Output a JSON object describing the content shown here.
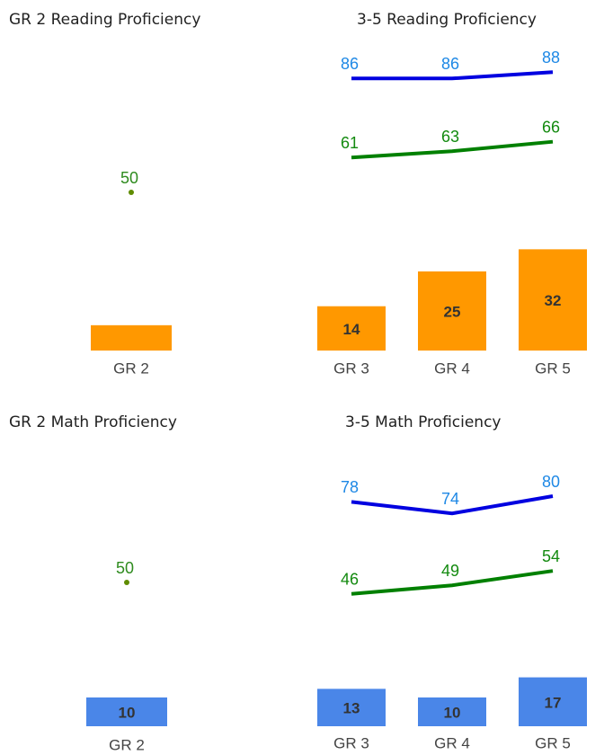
{
  "chart_data": [
    {
      "type": "combo",
      "title": "GR 2 Reading Proficiency",
      "categories": [
        "GR 2"
      ],
      "ylim": [
        0,
        100
      ],
      "bar_labels": false,
      "bars": {
        "color": "#ff9800",
        "values": [
          8
        ]
      },
      "series": [
        {
          "color": "#5f8c00",
          "label_color": "#2e8b1e",
          "values": [
            50
          ]
        }
      ]
    },
    {
      "type": "combo",
      "title": "3-5 Reading Proficiency",
      "categories": [
        "GR 3",
        "GR 4",
        "GR 5"
      ],
      "ylim": [
        0,
        100
      ],
      "bar_labels": true,
      "bars": {
        "color": "#ff9800",
        "values": [
          14,
          25,
          32
        ]
      },
      "series": [
        {
          "color": "#0000e0",
          "label_color": "#1e88e5",
          "values": [
            86,
            86,
            88
          ]
        },
        {
          "color": "#008000",
          "label_color": "#138a0f",
          "values": [
            61,
            63,
            66
          ]
        }
      ]
    },
    {
      "type": "combo",
      "title": "GR 2 Math Proficiency",
      "categories": [
        "GR 2"
      ],
      "ylim": [
        0,
        100
      ],
      "bar_labels": true,
      "bars": {
        "color": "#4a86e8",
        "values": [
          10
        ]
      },
      "series": [
        {
          "color": "#5f8c00",
          "label_color": "#2e8b1e",
          "values": [
            50
          ]
        }
      ]
    },
    {
      "type": "combo",
      "title": "3-5 Math Proficiency",
      "categories": [
        "GR 3",
        "GR 4",
        "GR 5"
      ],
      "ylim": [
        0,
        100
      ],
      "bar_labels": true,
      "bars": {
        "color": "#4a86e8",
        "values": [
          13,
          10,
          17
        ]
      },
      "series": [
        {
          "color": "#0000e0",
          "label_color": "#1e88e5",
          "values": [
            78,
            74,
            80
          ]
        },
        {
          "color": "#008000",
          "label_color": "#138a0f",
          "values": [
            46,
            49,
            54
          ]
        }
      ]
    }
  ]
}
